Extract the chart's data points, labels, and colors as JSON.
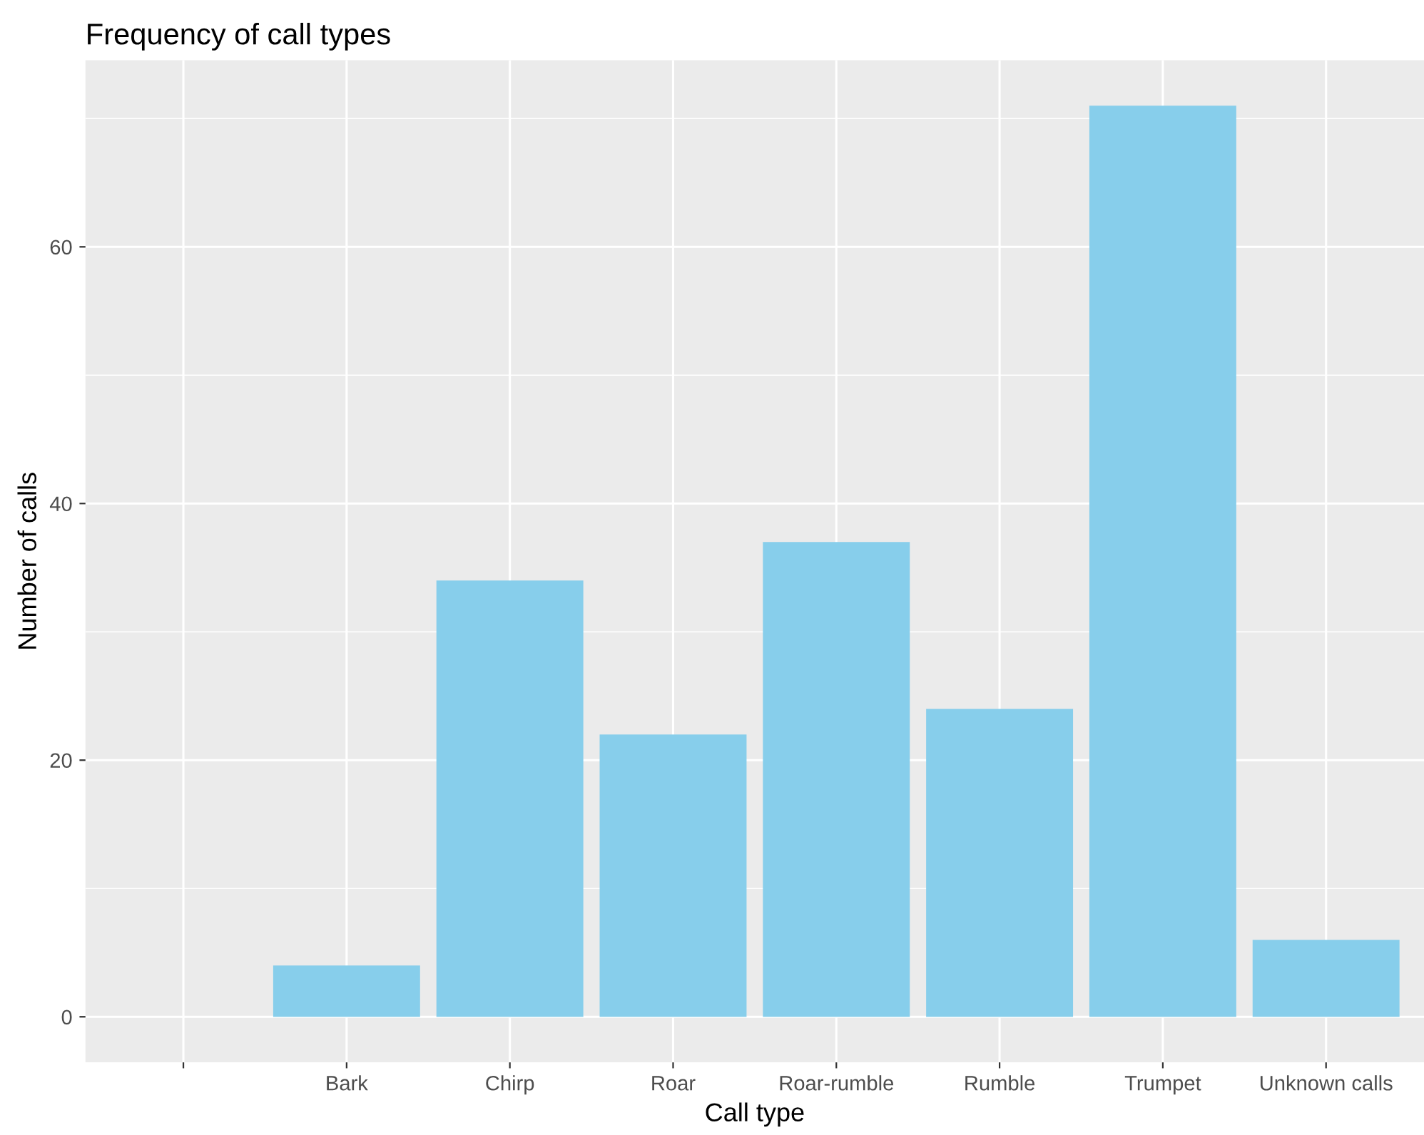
{
  "chart_data": {
    "type": "bar",
    "title": "Frequency of call types",
    "xlabel": "Call type",
    "ylabel": "Number of calls",
    "categories": [
      null,
      "Bark",
      "Chirp",
      "Roar",
      "Roar-rumble",
      "Rumble",
      "Trumpet",
      "Unknown calls"
    ],
    "values": [
      null,
      4,
      34,
      22,
      37,
      24,
      71,
      6
    ],
    "color": "#87ceeb",
    "ylim": [
      -3.55,
      74.55
    ],
    "yticks": [
      0,
      20,
      40,
      60
    ],
    "grid": true
  }
}
